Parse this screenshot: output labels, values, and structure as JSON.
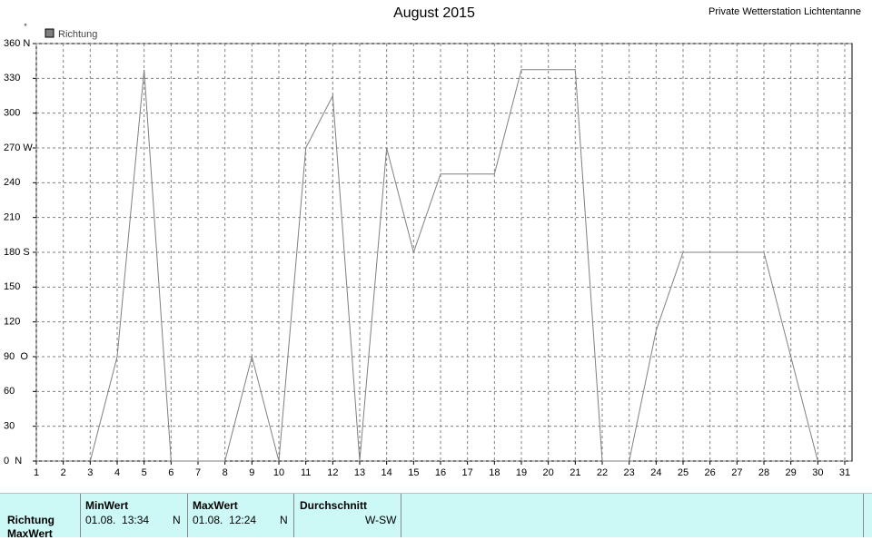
{
  "chart_data": {
    "type": "line",
    "title": "August 2015",
    "subtitle": "Private Wetterstation Lichtentanne",
    "ylabel": "°",
    "x": [
      1,
      2,
      3,
      4,
      5,
      6,
      7,
      8,
      9,
      10,
      11,
      12,
      13,
      14,
      15,
      16,
      17,
      18,
      19,
      20,
      21,
      22,
      23,
      24,
      25,
      26,
      27,
      28,
      29,
      30,
      31
    ],
    "series": [
      {
        "name": "Richtung",
        "color": "#808080",
        "values": [
          null,
          null,
          0,
          90,
          337.5,
          0,
          0,
          0,
          90,
          0,
          270,
          315,
          0,
          270,
          180,
          247.5,
          247.5,
          247.5,
          337.5,
          337.5,
          337.5,
          0,
          0,
          112.5,
          180,
          180,
          180,
          180,
          90,
          0,
          null
        ]
      }
    ],
    "xlim": [
      1,
      31
    ],
    "xticks": [
      1,
      2,
      3,
      4,
      5,
      6,
      7,
      8,
      9,
      10,
      11,
      12,
      13,
      14,
      15,
      16,
      17,
      18,
      19,
      20,
      21,
      22,
      23,
      24,
      25,
      26,
      27,
      28,
      29,
      30,
      31
    ],
    "ylim": [
      0,
      360
    ],
    "yticks": [
      {
        "value": 0,
        "label": "0  N"
      },
      30,
      60,
      {
        "value": 90,
        "label": "90  O"
      },
      120,
      150,
      {
        "value": 180,
        "label": "180 S"
      },
      210,
      240,
      {
        "value": 270,
        "label": "270 W"
      },
      300,
      330,
      {
        "value": 360,
        "label": "360 N"
      }
    ],
    "grid": true
  },
  "table": {
    "columns": [
      "MinWert",
      "MaxWert",
      "Durchschnitt"
    ],
    "row_labels": [
      "Richtung",
      "MaxWert"
    ],
    "rows": [
      [
        "01.08.  13:34",
        "N",
        "01.08.  12:24",
        "N",
        "W-SW"
      ]
    ]
  }
}
